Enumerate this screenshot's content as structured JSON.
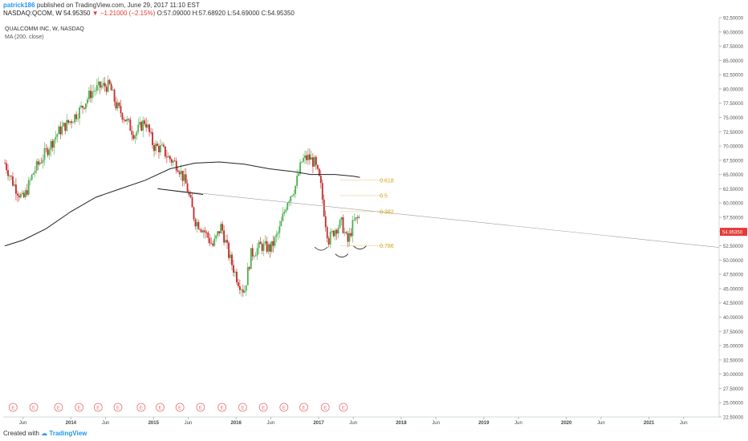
{
  "header": {
    "user": "patrick186",
    "published_text": "published on TradingView.com, June 29, 2017 11:10 EST",
    "symbol_line": "NASDAQ:QCOM, W 54.95350",
    "change": "▼ −1.21000 (−2.15%)",
    "ohlc": "O:57.09000 H:57.68920 L:54.69000 C:54.95350"
  },
  "legend": {
    "title": "QUALCOMM INC, W, NASDAQ",
    "indicator": "MA (200, close)"
  },
  "footer": {
    "created_with": "Created with",
    "brand": "TradingView"
  },
  "colors": {
    "up": "#4caf50",
    "down": "#c62828",
    "ma_line": "#222222",
    "fib": "#d4a017",
    "price_tag": "#e53935",
    "event": "#e57373"
  },
  "chart_data": {
    "type": "candlestick",
    "title": "QUALCOMM INC, W, NASDAQ",
    "ylim": [
      22.5,
      92.5
    ],
    "y_ticks": [
      "92.50000",
      "90.00000",
      "87.50000",
      "85.00000",
      "82.50000",
      "80.00000",
      "77.50000",
      "75.00000",
      "72.50000",
      "70.00000",
      "67.50000",
      "65.00000",
      "62.50000",
      "60.00000",
      "57.50000",
      "55.00000",
      "52.50000",
      "50.00000",
      "47.50000",
      "45.00000",
      "42.50000",
      "40.00000",
      "37.50000",
      "35.00000",
      "32.50000",
      "30.00000",
      "27.50000",
      "25.00000",
      "22.50000"
    ],
    "x_ticks": [
      {
        "label": "Jun",
        "t": 2013.42
      },
      {
        "label": "2014",
        "t": 2014.0
      },
      {
        "label": "Jun",
        "t": 2014.42
      },
      {
        "label": "2015",
        "t": 2015.0
      },
      {
        "label": "Jun",
        "t": 2015.42
      },
      {
        "label": "2016",
        "t": 2016.0
      },
      {
        "label": "Jun",
        "t": 2016.42
      },
      {
        "label": "2017",
        "t": 2017.0
      },
      {
        "label": "Jun",
        "t": 2017.42
      },
      {
        "label": "2018",
        "t": 2018.0
      },
      {
        "label": "Jun",
        "t": 2018.42
      },
      {
        "label": "2019",
        "t": 2019.0
      },
      {
        "label": "Jun",
        "t": 2019.42
      },
      {
        "label": "2020",
        "t": 2020.0
      },
      {
        "label": "Jun",
        "t": 2020.42
      },
      {
        "label": "2021",
        "t": 2021.0
      },
      {
        "label": "Jun",
        "t": 2021.42
      }
    ],
    "price_path": [
      [
        2013.2,
        67.0
      ],
      [
        2013.3,
        63.5
      ],
      [
        2013.42,
        60.5
      ],
      [
        2013.55,
        65.5
      ],
      [
        2013.7,
        69.0
      ],
      [
        2013.85,
        72.5
      ],
      [
        2014.0,
        74.5
      ],
      [
        2014.12,
        76.5
      ],
      [
        2014.25,
        79.5
      ],
      [
        2014.37,
        80.5
      ],
      [
        2014.47,
        80.5
      ],
      [
        2014.55,
        77.0
      ],
      [
        2014.65,
        75.0
      ],
      [
        2014.77,
        72.0
      ],
      [
        2014.9,
        74.5
      ],
      [
        2015.0,
        70.0
      ],
      [
        2015.1,
        69.5
      ],
      [
        2015.18,
        68.0
      ],
      [
        2015.3,
        66.5
      ],
      [
        2015.4,
        63.0
      ],
      [
        2015.5,
        57.0
      ],
      [
        2015.6,
        55.5
      ],
      [
        2015.72,
        52.5
      ],
      [
        2015.82,
        56.0
      ],
      [
        2015.92,
        50.5
      ],
      [
        2016.02,
        46.5
      ],
      [
        2016.1,
        44.5
      ],
      [
        2016.18,
        51.0
      ],
      [
        2016.3,
        52.5
      ],
      [
        2016.42,
        52.0
      ],
      [
        2016.52,
        55.0
      ],
      [
        2016.62,
        60.5
      ],
      [
        2016.72,
        63.0
      ],
      [
        2016.8,
        67.5
      ],
      [
        2016.88,
        68.0
      ],
      [
        2016.95,
        67.0
      ],
      [
        2017.02,
        63.5
      ],
      [
        2017.08,
        57.0
      ],
      [
        2017.12,
        53.5
      ],
      [
        2017.2,
        55.5
      ],
      [
        2017.28,
        56.5
      ],
      [
        2017.35,
        53.0
      ],
      [
        2017.42,
        56.5
      ],
      [
        2017.49,
        57.5
      ],
      [
        2017.5,
        54.95
      ]
    ],
    "ma_200": [
      [
        2013.2,
        52.5
      ],
      [
        2013.42,
        53.5
      ],
      [
        2013.7,
        55.5
      ],
      [
        2014.0,
        58.5
      ],
      [
        2014.3,
        61.0
      ],
      [
        2014.6,
        62.5
      ],
      [
        2014.9,
        64.0
      ],
      [
        2015.2,
        66.0
      ],
      [
        2015.5,
        67.0
      ],
      [
        2015.8,
        67.2
      ],
      [
        2016.1,
        66.8
      ],
      [
        2016.4,
        66.0
      ],
      [
        2016.7,
        65.5
      ],
      [
        2016.9,
        65.0
      ],
      [
        2017.2,
        65.0
      ],
      [
        2017.42,
        64.7
      ],
      [
        2017.5,
        64.5
      ]
    ],
    "trendline": {
      "from": [
        2015.05,
        62.5
      ],
      "to": [
        2022.0,
        52.0
      ]
    },
    "support_segment": {
      "from": [
        2015.05,
        62.5
      ],
      "to": [
        2015.6,
        61.5
      ]
    },
    "fib_levels": [
      {
        "label": "0.618",
        "value": 64.0
      },
      {
        "label": "0.5",
        "value": 61.3
      },
      {
        "label": "0.382",
        "value": 58.5
      },
      {
        "label": "0.786",
        "value": 52.5
      }
    ],
    "event_markers": {
      "label": "E",
      "t": [
        2013.3,
        2013.55,
        2013.85,
        2014.1,
        2014.33,
        2014.57,
        2014.85,
        2015.08,
        2015.32,
        2015.57,
        2015.83,
        2016.08,
        2016.33,
        2016.58,
        2016.82,
        2017.08,
        2017.3
      ]
    },
    "last_price": {
      "label": "54.95350",
      "value": 54.9535
    }
  }
}
